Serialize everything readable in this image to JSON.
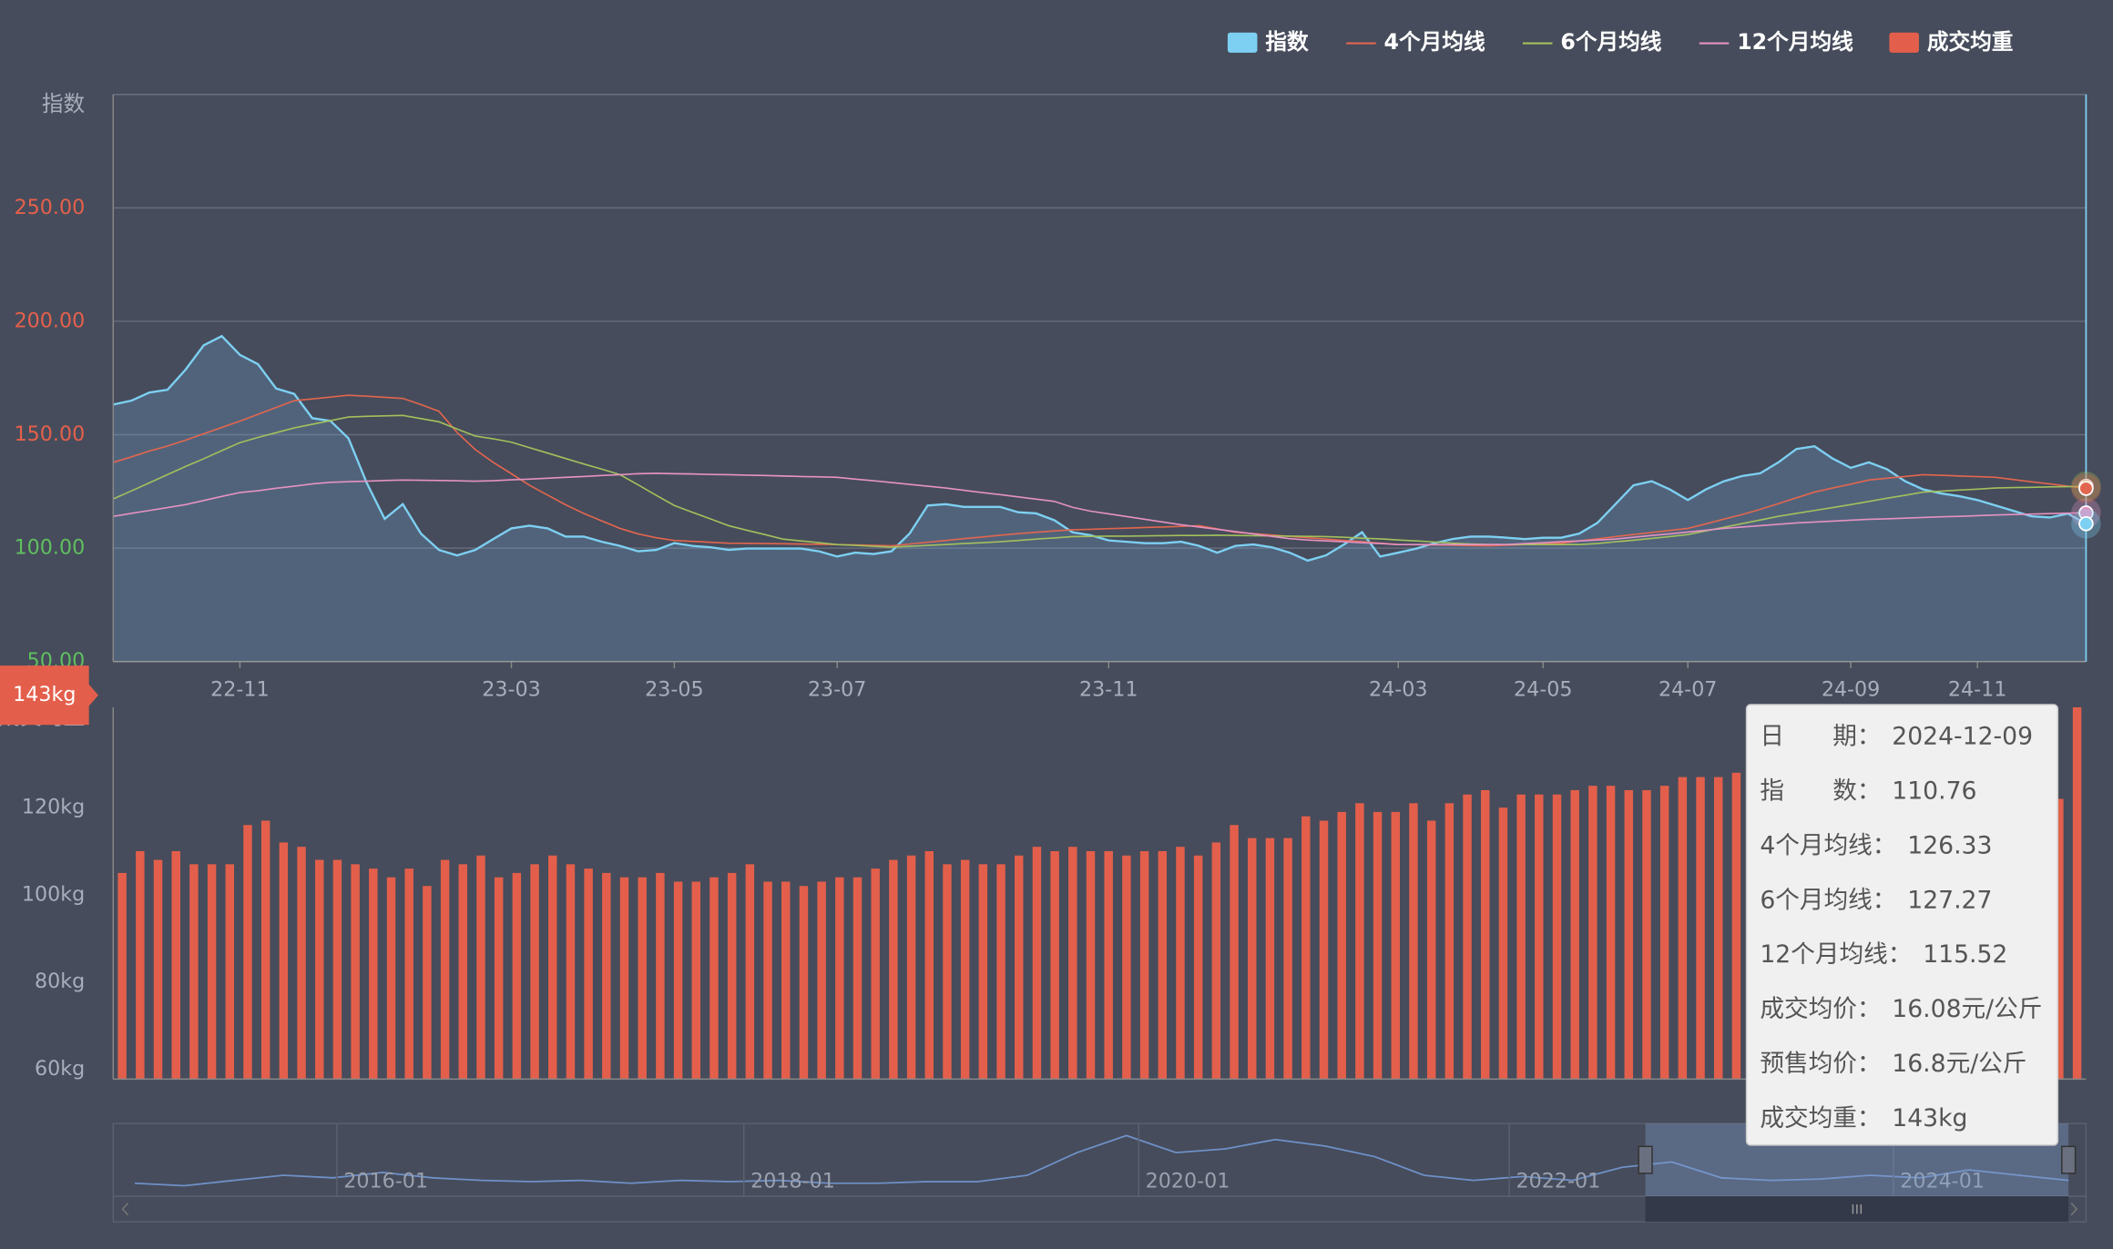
{
  "chart_data": [
    {
      "type": "line",
      "y_axis_name": "指数",
      "categories": [
        null,
        null,
        null,
        null,
        null,
        null,
        null,
        "22-11",
        null,
        null,
        null,
        null,
        null,
        null,
        null,
        null,
        null,
        null,
        null,
        null,
        null,
        null,
        "23-03",
        null,
        null,
        null,
        null,
        null,
        null,
        null,
        null,
        "23-05",
        null,
        null,
        null,
        null,
        null,
        null,
        null,
        null,
        "23-07",
        null,
        null,
        null,
        null,
        null,
        null,
        null,
        null,
        null,
        null,
        null,
        null,
        null,
        null,
        "23-11",
        null,
        null,
        null,
        null,
        null,
        null,
        null,
        null,
        null,
        null,
        null,
        null,
        null,
        null,
        null,
        "24-03",
        null,
        null,
        null,
        null,
        null,
        null,
        null,
        "24-05",
        null,
        null,
        null,
        null,
        null,
        null,
        null,
        "24-07",
        null,
        null,
        null,
        null,
        null,
        null,
        null,
        null,
        "24-09",
        null,
        null,
        null,
        null,
        null,
        null,
        "24-11",
        null,
        null,
        null,
        null,
        null,
        null
      ],
      "series": [
        {
          "name": "指数",
          "color": "#7dd0f2",
          "area": true,
          "values": [
            163.3,
            165.0,
            168.6,
            169.8,
            178.7,
            189.4,
            193.5,
            185.2,
            181.1,
            170.4,
            168.0,
            157.3,
            156.1,
            148.4,
            128.9,
            112.9,
            119.4,
            106.4,
            99.2,
            96.8,
            99.2,
            104.0,
            108.7,
            109.9,
            108.7,
            105.1,
            105.1,
            102.8,
            101.0,
            98.6,
            99.2,
            102.2,
            101.0,
            100.4,
            99.2,
            99.8,
            99.8,
            99.8,
            99.8,
            98.6,
            96.3,
            98.0,
            97.4,
            98.6,
            106.4,
            118.8,
            119.4,
            118.2,
            118.2,
            118.2,
            115.8,
            115.3,
            112.3,
            107.0,
            105.7,
            103.4,
            102.8,
            102.2,
            102.2,
            102.8,
            101.0,
            98.0,
            101.0,
            101.6,
            100.4,
            98.0,
            94.5,
            96.8,
            101.6,
            107.0,
            96.3,
            98.0,
            99.8,
            102.2,
            104.0,
            105.1,
            105.1,
            104.6,
            104.0,
            104.6,
            104.6,
            106.4,
            111.1,
            119.4,
            127.7,
            129.5,
            125.9,
            121.2,
            125.9,
            129.5,
            131.8,
            133.0,
            137.8,
            143.7,
            144.9,
            139.5,
            135.4,
            137.8,
            134.8,
            129.5,
            125.9,
            124.1,
            122.9,
            121.2,
            118.8,
            116.4,
            114.0,
            113.5,
            115.2,
            110.76
          ]
        },
        {
          "name": "4个月均线",
          "color": "#e2664f",
          "values": [
            137.8,
            140.2,
            142.8,
            145.0,
            147.6,
            150.4,
            153.2,
            156.0,
            159.0,
            162.0,
            165.0,
            165.8,
            166.6,
            167.4,
            167.0,
            166.5,
            166.0,
            163.3,
            160.3,
            151.0,
            143.5,
            137.8,
            132.8,
            127.7,
            123.4,
            119.1,
            115.3,
            112.0,
            108.7,
            106.3,
            104.6,
            103.4,
            103.0,
            102.6,
            102.2,
            102.1,
            102.0,
            101.9,
            101.8,
            101.7,
            101.6,
            101.4,
            101.2,
            101.0,
            101.8,
            102.6,
            103.4,
            104.2,
            104.9,
            105.7,
            106.4,
            107.0,
            107.6,
            108.1,
            108.3,
            108.6,
            108.8,
            109.1,
            109.3,
            109.6,
            109.9,
            108.5,
            107.0,
            106.4,
            105.8,
            105.2,
            104.6,
            104.0,
            103.4,
            102.8,
            102.2,
            101.6,
            101.5,
            101.4,
            101.3,
            101.1,
            101.0,
            101.3,
            101.6,
            101.9,
            102.2,
            103.2,
            104.1,
            105.1,
            106.0,
            106.9,
            107.8,
            108.7,
            110.7,
            112.8,
            114.8,
            117.1,
            119.6,
            122.2,
            124.7,
            126.5,
            128.2,
            130.0,
            130.8,
            131.6,
            132.4,
            132.1,
            131.8,
            131.5,
            131.2,
            130.2,
            129.2,
            128.3,
            127.3,
            126.33
          ]
        },
        {
          "name": "6个月均线",
          "color": "#a3c05c",
          "values": [
            121.7,
            125.2,
            128.8,
            132.4,
            136.0,
            139.4,
            143.0,
            146.5,
            148.8,
            150.9,
            153.0,
            154.6,
            156.2,
            157.8,
            158.1,
            158.3,
            158.5,
            157.1,
            155.7,
            152.5,
            149.4,
            148.2,
            146.7,
            144.3,
            141.9,
            139.5,
            137.1,
            134.8,
            132.4,
            127.9,
            123.3,
            118.8,
            115.8,
            112.9,
            109.9,
            107.9,
            106.0,
            104.0,
            103.2,
            102.4,
            101.6,
            101.2,
            100.8,
            100.4,
            100.8,
            101.2,
            101.6,
            102.0,
            102.4,
            102.8,
            103.4,
            104.0,
            104.5,
            105.1,
            105.2,
            105.3,
            105.3,
            105.4,
            105.5,
            105.6,
            105.6,
            105.7,
            105.6,
            105.5,
            105.4,
            105.3,
            105.2,
            105.1,
            104.8,
            104.4,
            104.1,
            103.6,
            103.2,
            102.7,
            102.2,
            101.8,
            101.6,
            101.6,
            101.6,
            101.6,
            101.6,
            101.6,
            102.0,
            102.8,
            103.5,
            104.3,
            105.1,
            106.0,
            107.6,
            109.2,
            110.8,
            112.4,
            114.0,
            115.3,
            116.6,
            117.9,
            119.2,
            120.6,
            122.0,
            123.3,
            124.7,
            125.1,
            125.6,
            126.0,
            126.5,
            126.7,
            126.8,
            127.0,
            127.1,
            127.27
          ]
        },
        {
          "name": "12个月均线",
          "color": "#e592c2",
          "values": [
            114.0,
            115.3,
            116.6,
            117.9,
            119.2,
            121.0,
            122.8,
            124.5,
            125.3,
            126.4,
            127.3,
            128.3,
            129.0,
            129.3,
            129.5,
            129.8,
            130.0,
            129.9,
            129.8,
            129.7,
            129.5,
            129.7,
            130.1,
            130.4,
            130.8,
            131.2,
            131.6,
            132.0,
            132.4,
            132.8,
            133.0,
            132.8,
            132.7,
            132.5,
            132.4,
            132.2,
            132.0,
            131.8,
            131.6,
            131.4,
            131.2,
            130.4,
            129.7,
            128.9,
            128.1,
            127.3,
            126.5,
            125.5,
            124.5,
            123.6,
            122.6,
            121.6,
            120.6,
            118.0,
            116.3,
            115.1,
            113.9,
            112.7,
            111.5,
            110.3,
            109.3,
            108.3,
            107.3,
            106.3,
            105.2,
            104.2,
            103.6,
            103.2,
            102.8,
            102.4,
            102.0,
            101.6,
            101.6,
            101.6,
            101.6,
            101.6,
            101.6,
            101.6,
            102.0,
            102.4,
            102.8,
            103.2,
            103.6,
            104.0,
            104.8,
            105.6,
            106.3,
            107.1,
            107.9,
            108.7,
            109.3,
            109.9,
            110.5,
            111.1,
            111.5,
            111.9,
            112.3,
            112.7,
            112.9,
            113.2,
            113.5,
            113.8,
            114.0,
            114.3,
            114.6,
            114.8,
            115.0,
            115.2,
            115.4,
            115.52
          ]
        }
      ],
      "ylim": [
        50,
        300
      ],
      "yticks": [
        {
          "value": 50,
          "label": "50.00"
        },
        {
          "value": 100,
          "label": "100.00"
        },
        {
          "value": 150,
          "label": "150.00"
        },
        {
          "value": 200,
          "label": "200.00"
        },
        {
          "value": 250,
          "label": "250.00"
        }
      ],
      "ytick_label_colors": [
        "#5fbf5f",
        "#5fbf5f",
        "#e5604c",
        "#e5604c",
        "#e5604c"
      ],
      "grid": true
    },
    {
      "type": "bar",
      "y_axis_name": "成交均重",
      "series": [
        {
          "name": "成交均重",
          "color": "#e35f4b",
          "values": [
            105,
            110,
            108,
            110,
            107,
            107,
            107,
            116,
            117,
            112,
            111,
            108,
            108,
            107,
            106,
            104,
            106,
            102,
            108,
            107,
            109,
            104,
            105,
            107,
            109,
            107,
            106,
            105,
            104,
            104,
            105,
            103,
            103,
            104,
            105,
            107,
            103,
            103,
            102,
            103,
            104,
            104,
            106,
            108,
            109,
            110,
            107,
            108,
            107,
            107,
            109,
            111,
            110,
            111,
            110,
            110,
            109,
            110,
            110,
            111,
            109,
            112,
            116,
            113,
            113,
            113,
            118,
            117,
            119,
            121,
            119,
            119,
            121,
            117,
            121,
            123,
            124,
            120,
            123,
            123,
            123,
            124,
            125,
            125,
            124,
            124,
            125,
            127,
            127,
            127,
            128,
            127,
            128,
            128,
            127,
            126,
            128,
            128,
            127,
            128,
            128,
            129,
            129,
            128,
            129,
            130,
            128,
            127,
            122,
            143
          ]
        }
      ],
      "ylim": [
        57.7,
        143
      ],
      "yticks": [
        {
          "value": 60,
          "label": "60kg"
        },
        {
          "value": 80,
          "label": "80kg"
        },
        {
          "value": 100,
          "label": "100kg"
        },
        {
          "value": 120,
          "label": "120kg"
        }
      ]
    }
  ],
  "axis_pointer_label": "143kg",
  "tooltip": {
    "rows": [
      {
        "label": "日　　期：",
        "value": "2024-12-09"
      },
      {
        "label": "指　　数：",
        "value": "110.76"
      },
      {
        "label": "4个月均线：",
        "value": "126.33"
      },
      {
        "label": "6个月均线：",
        "value": "127.27"
      },
      {
        "label": "12个月均线：",
        "value": "115.52"
      },
      {
        "label": "成交均价：",
        "value": "16.08元/公斤"
      },
      {
        "label": "预售均价：",
        "value": "16.8元/公斤"
      },
      {
        "label": "成交均重：",
        "value": "143kg"
      }
    ]
  },
  "data_zoom": {
    "labels": [
      "2016-01",
      "2018-01",
      "2020-01",
      "2022-01",
      "2024-01"
    ],
    "values": [
      101,
      93,
      110,
      126,
      118,
      135,
      118,
      110,
      106,
      110,
      101,
      110,
      106,
      110,
      101,
      101,
      106,
      106,
      126,
      197,
      251,
      197,
      209,
      238,
      218,
      185,
      126,
      110,
      122,
      110,
      151,
      168,
      118,
      110,
      114,
      126,
      118,
      143,
      126,
      110
    ],
    "ylim": [
      60,
      280
    ]
  }
}
